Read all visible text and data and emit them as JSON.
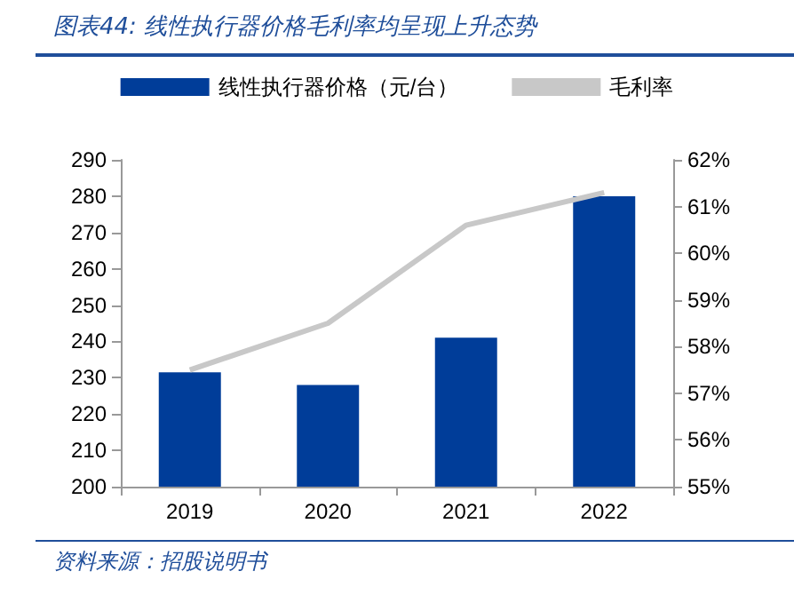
{
  "chart_data": {
    "type": "bar",
    "title": "图表44:  线性执行器价格毛利率均呈现上升态势",
    "categories": [
      "2019",
      "2020",
      "2021",
      "2022"
    ],
    "series": [
      {
        "name": "线性执行器价格（元/台）",
        "color": "#003d99",
        "values": [
          231.5,
          228,
          241,
          280
        ]
      },
      {
        "name": "毛利率",
        "type": "line",
        "axis": "y2",
        "color": "#c8c8c8",
        "values": [
          57.5,
          58.5,
          60.6,
          61.3
        ]
      }
    ],
    "ylim": [
      200,
      290
    ],
    "yticks": [
      200,
      210,
      220,
      230,
      240,
      250,
      260,
      270,
      280,
      290
    ],
    "y2lim": [
      55,
      62
    ],
    "y2ticks": [
      {
        "value": 55,
        "label": "55%"
      },
      {
        "value": 56,
        "label": "56%"
      },
      {
        "value": 57,
        "label": "57%"
      },
      {
        "value": 58,
        "label": "58%"
      },
      {
        "value": 59,
        "label": "59%"
      },
      {
        "value": 60,
        "label": "60%"
      },
      {
        "value": 61,
        "label": "61%"
      },
      {
        "value": 62,
        "label": "62%"
      }
    ],
    "grid": false,
    "legend": "top",
    "marker": "none",
    "annotations": [
      "资料来源：招股说明书"
    ]
  }
}
